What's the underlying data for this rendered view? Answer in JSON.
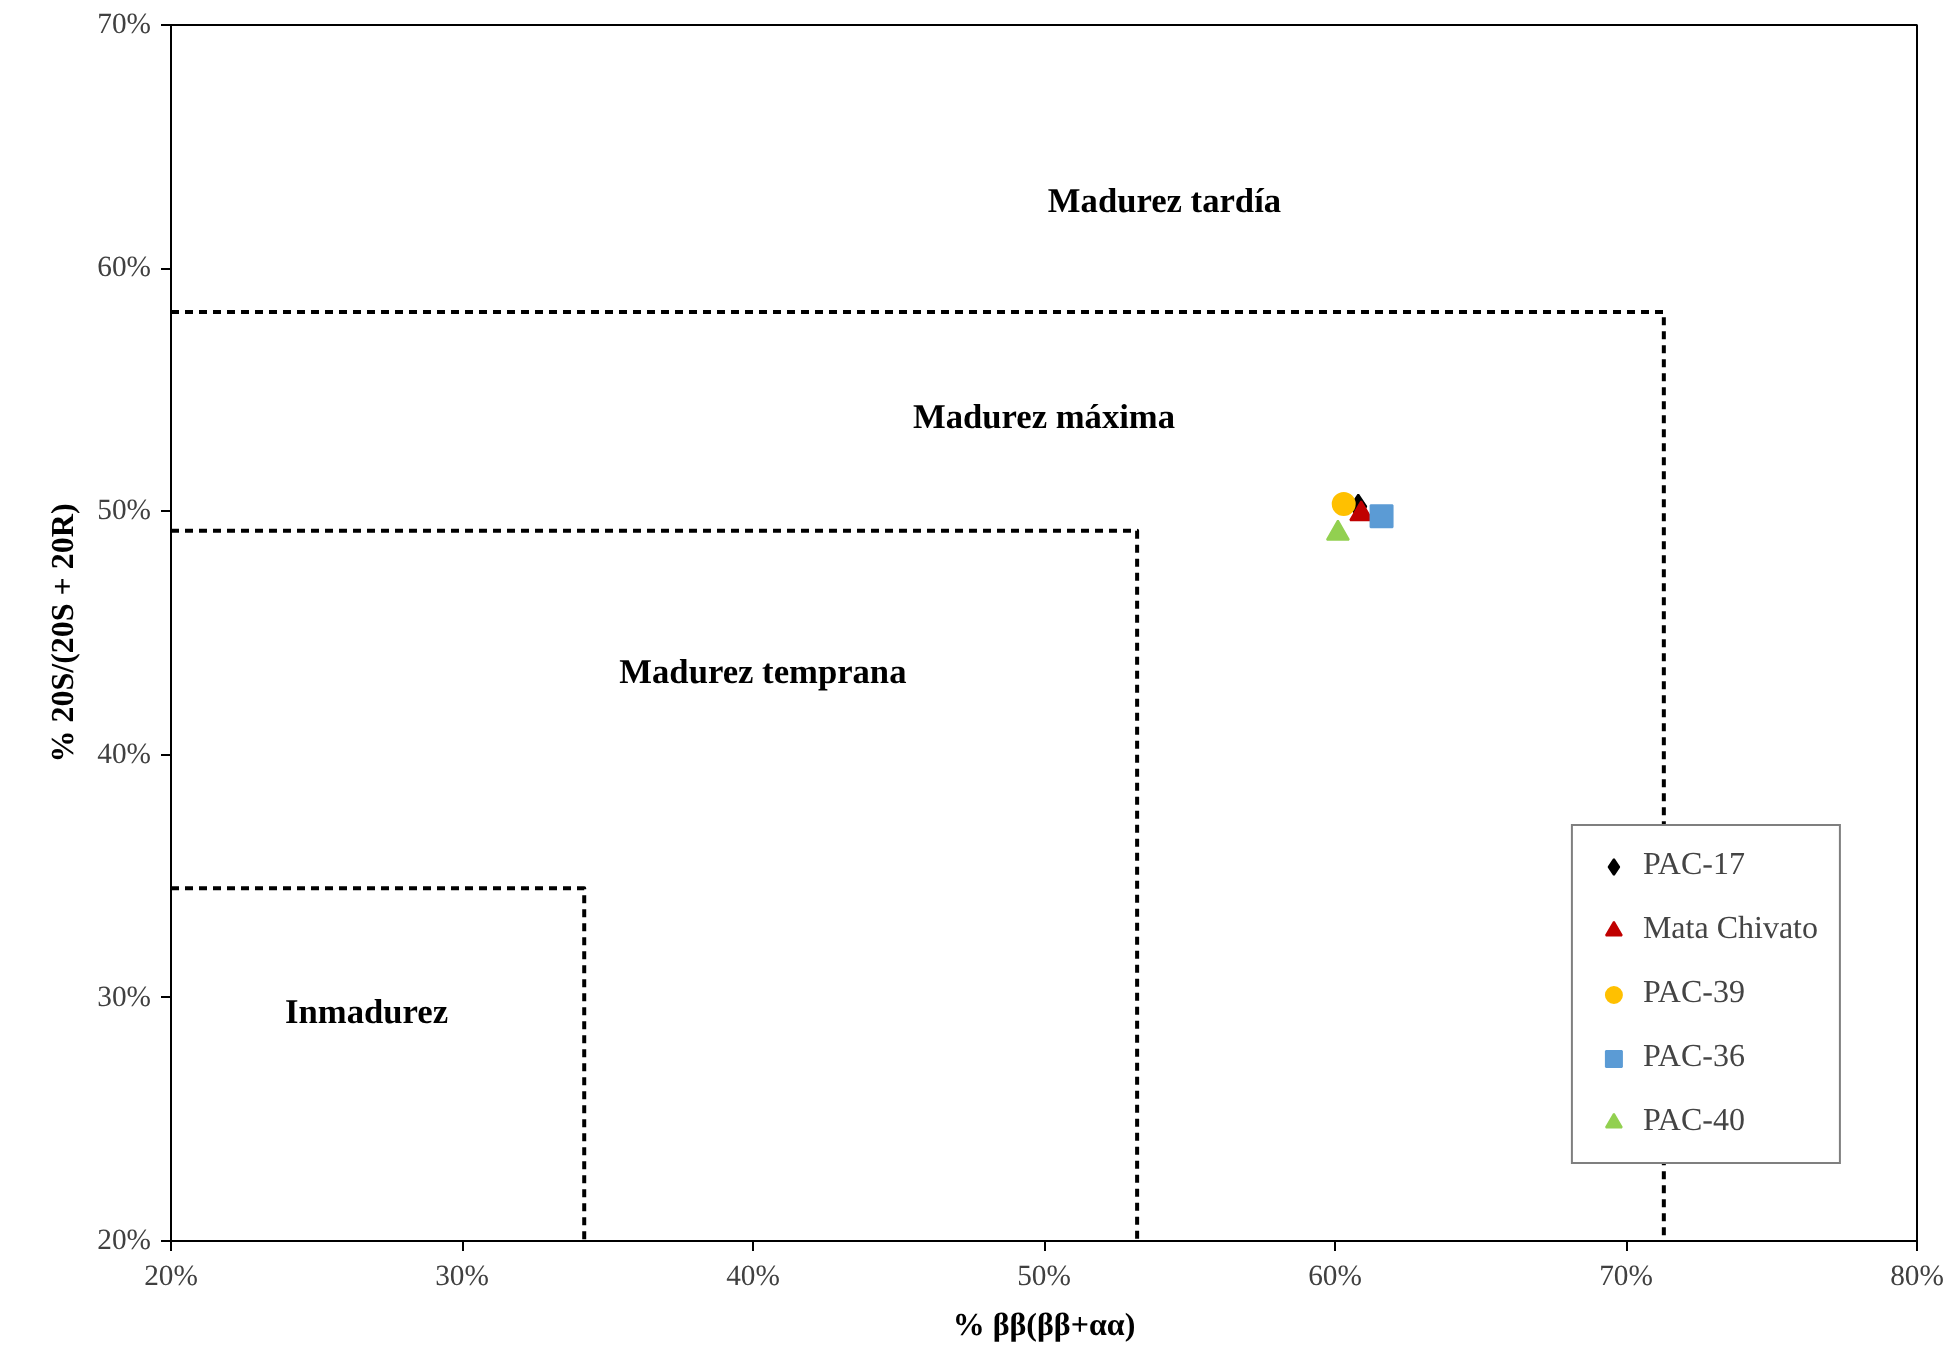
{
  "chart_data": {
    "type": "scatter",
    "xlabel": "% ββ(ββ+αα)",
    "ylabel": "% 20S/(20S + 20R)",
    "xlim": [
      20,
      80
    ],
    "ylim": [
      20,
      70
    ],
    "xticks": [
      {
        "value": 20,
        "label": "20%"
      },
      {
        "value": 30,
        "label": "30%"
      },
      {
        "value": 40,
        "label": "40%"
      },
      {
        "value": 50,
        "label": "50%"
      },
      {
        "value": 60,
        "label": "60%"
      },
      {
        "value": 70,
        "label": "70%"
      },
      {
        "value": 80,
        "label": "80%"
      }
    ],
    "yticks": [
      {
        "value": 20,
        "label": "20%"
      },
      {
        "value": 30,
        "label": "30%"
      },
      {
        "value": 40,
        "label": "40%"
      },
      {
        "value": 50,
        "label": "50%"
      },
      {
        "value": 60,
        "label": "60%"
      },
      {
        "value": 70,
        "label": "70%"
      }
    ],
    "grid": false,
    "legend": "bottom right",
    "series": [
      {
        "type": "line",
        "color": "#000000",
        "line_style": "dashed",
        "x": [
          20,
          71.3,
          71.3
        ],
        "values": [
          58.2,
          58.2,
          20
        ]
      },
      {
        "type": "line",
        "color": "#000000",
        "line_style": "dashed",
        "x": [
          20,
          53.2,
          53.2
        ],
        "values": [
          49.2,
          49.2,
          20
        ]
      },
      {
        "type": "line",
        "color": "#000000",
        "line_style": "dashed",
        "x": [
          20,
          34.2,
          34.2
        ],
        "values": [
          34.5,
          34.5,
          20
        ]
      },
      {
        "name": "PAC-17",
        "color": "#000000",
        "marker": "diamond",
        "x": [
          60.8
        ],
        "values": [
          50.2
        ]
      },
      {
        "name": "Mata Chivato",
        "color": "#c00000",
        "marker": "triangle",
        "x": [
          60.9
        ],
        "values": [
          49.9
        ]
      },
      {
        "name": "PAC-39",
        "color": "#ffc000",
        "marker": "circle",
        "x": [
          60.3
        ],
        "values": [
          50.3
        ]
      },
      {
        "name": "PAC-36",
        "color": "#5b9bd5",
        "marker": "square",
        "x": [
          61.6
        ],
        "values": [
          49.8
        ]
      },
      {
        "name": "PAC-40",
        "color": "#92d050",
        "marker": "triangle",
        "x": [
          60.1
        ],
        "values": [
          49.1
        ]
      }
    ],
    "annotations": [
      "Madurez tardía",
      "Madurez máxima",
      "Madurez temprana",
      "Inmadurez"
    ]
  }
}
